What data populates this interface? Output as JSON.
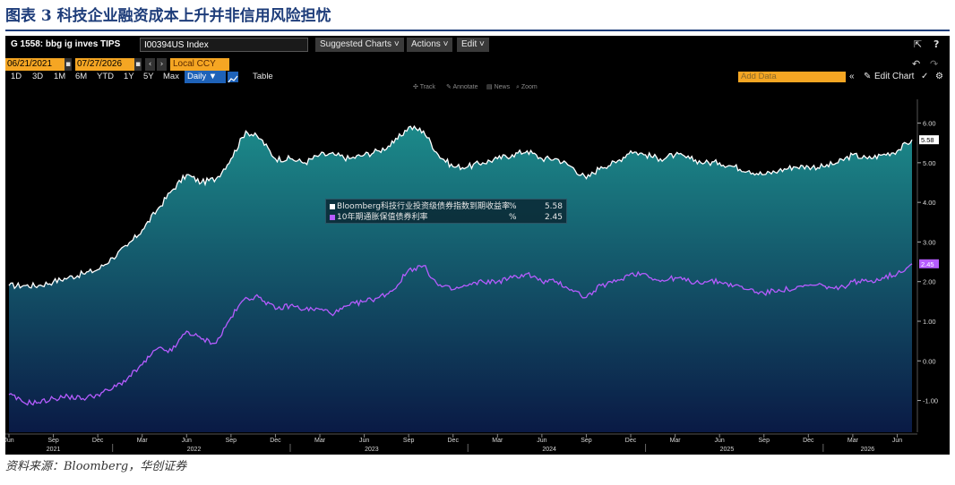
{
  "caption": {
    "title": "图表 3 科技企业融资成本上升并非信用风险担忧",
    "source": "资料来源：Bloomberg，华创证券"
  },
  "terminal": {
    "chart_id": "G 1558: bbg ig inves TIPS",
    "ticker": "I00394US Index",
    "menus": [
      "Suggested Charts ˅",
      "Actions ˅",
      "Edit ˅"
    ],
    "start_date": "06/21/2021",
    "end_date": "07/27/2026",
    "currency": "Local CCY",
    "periods": [
      "1D",
      "3D",
      "1M",
      "6M",
      "YTD",
      "1Y",
      "5Y",
      "Max"
    ],
    "frequency": "Daily ▼",
    "table_label": "Table",
    "add_data_placeholder": "Add Data",
    "edit_chart_label": "Edit Chart",
    "tool_hints": [
      "Track",
      "Annotate",
      "News",
      "Zoom"
    ]
  },
  "chart_data": {
    "type": "area",
    "title": "",
    "xlabel": "",
    "ylabel": "",
    "ylim": [
      -1.8,
      6.6
    ],
    "y_ticks": [
      "6.00",
      "5.00",
      "4.00",
      "3.00",
      "2.00",
      "1.00",
      "0.00",
      "-1.00"
    ],
    "x_month_ticks": [
      "Jun",
      "Sep",
      "Dec",
      "Mar",
      "Jun",
      "Sep",
      "Dec",
      "Mar",
      "Jun",
      "Sep",
      "Dec",
      "Mar",
      "Jun",
      "Sep",
      "Dec",
      "Mar",
      "Jun",
      "Sep",
      "Dec",
      "Mar",
      "Jun"
    ],
    "x_year_labels": [
      "2021",
      "2022",
      "2023",
      "2024",
      "2025",
      "2026"
    ],
    "legend_position": "center",
    "series": [
      {
        "name": "Bloomberg科技行业投资级债券指数到期收益率",
        "unit": "%",
        "last_value": "5.58",
        "color": "#ffffff",
        "fill_top": "#1c8a8a",
        "fill_bottom": "#0a1a45",
        "x": [
          "2021-06",
          "2021-07",
          "2021-08",
          "2021-09",
          "2021-10",
          "2021-11",
          "2021-12",
          "2022-01",
          "2022-02",
          "2022-03",
          "2022-04",
          "2022-05",
          "2022-06",
          "2022-07",
          "2022-08",
          "2022-09",
          "2022-10",
          "2022-11",
          "2022-12",
          "2023-01",
          "2023-02",
          "2023-03",
          "2023-04",
          "2023-05",
          "2023-06",
          "2023-07",
          "2023-08",
          "2023-09",
          "2023-10",
          "2023-11",
          "2023-12",
          "2024-01",
          "2024-02",
          "2024-03",
          "2024-04",
          "2024-05",
          "2024-06",
          "2024-07",
          "2024-08",
          "2024-09",
          "2024-10",
          "2024-11",
          "2024-12",
          "2025-01",
          "2025-02",
          "2025-03",
          "2025-04",
          "2025-05",
          "2025-06",
          "2025-07",
          "2025-08",
          "2025-09",
          "2025-10",
          "2025-11",
          "2025-12",
          "2026-01",
          "2026-02",
          "2026-03",
          "2026-04",
          "2026-05",
          "2026-06",
          "2026-07"
        ],
        "values": [
          1.9,
          1.9,
          1.9,
          2.0,
          2.1,
          2.2,
          2.3,
          2.6,
          2.9,
          3.3,
          3.8,
          4.3,
          4.7,
          4.5,
          4.6,
          5.1,
          5.8,
          5.6,
          5.1,
          5.1,
          5.0,
          5.2,
          5.2,
          5.1,
          5.2,
          5.3,
          5.5,
          5.9,
          5.8,
          5.2,
          4.9,
          4.9,
          5.0,
          5.1,
          5.2,
          5.3,
          5.1,
          5.1,
          4.9,
          4.6,
          4.9,
          5.0,
          5.3,
          5.2,
          5.1,
          5.2,
          5.1,
          5.0,
          5.0,
          4.9,
          4.8,
          4.7,
          4.8,
          4.9,
          4.9,
          4.9,
          5.0,
          5.2,
          5.1,
          5.2,
          5.3,
          5.58
        ]
      },
      {
        "name": "10年期通胀保值债券利率",
        "unit": "%",
        "last_value": "2.45",
        "color": "#b65cff",
        "x": [
          "2021-06",
          "2021-07",
          "2021-08",
          "2021-09",
          "2021-10",
          "2021-11",
          "2021-12",
          "2022-01",
          "2022-02",
          "2022-03",
          "2022-04",
          "2022-05",
          "2022-06",
          "2022-07",
          "2022-08",
          "2022-09",
          "2022-10",
          "2022-11",
          "2022-12",
          "2023-01",
          "2023-02",
          "2023-03",
          "2023-04",
          "2023-05",
          "2023-06",
          "2023-07",
          "2023-08",
          "2023-09",
          "2023-10",
          "2023-11",
          "2023-12",
          "2024-01",
          "2024-02",
          "2024-03",
          "2024-04",
          "2024-05",
          "2024-06",
          "2024-07",
          "2024-08",
          "2024-09",
          "2024-10",
          "2024-11",
          "2024-12",
          "2025-01",
          "2025-02",
          "2025-03",
          "2025-04",
          "2025-05",
          "2025-06",
          "2025-07",
          "2025-08",
          "2025-09",
          "2025-10",
          "2025-11",
          "2025-12",
          "2026-01",
          "2026-02",
          "2026-03",
          "2026-04",
          "2026-05",
          "2026-06",
          "2026-07"
        ],
        "values": [
          -0.85,
          -1.05,
          -1.05,
          -0.95,
          -0.9,
          -0.95,
          -0.85,
          -0.7,
          -0.45,
          -0.1,
          0.3,
          0.25,
          0.75,
          0.55,
          0.45,
          1.1,
          1.6,
          1.6,
          1.3,
          1.4,
          1.3,
          1.3,
          1.2,
          1.4,
          1.5,
          1.6,
          1.8,
          2.3,
          2.4,
          1.9,
          1.8,
          1.9,
          2.0,
          2.0,
          2.1,
          2.2,
          2.0,
          2.0,
          1.8,
          1.6,
          1.9,
          2.0,
          2.2,
          2.2,
          2.0,
          2.1,
          2.0,
          2.0,
          2.0,
          1.9,
          1.8,
          1.7,
          1.8,
          1.8,
          1.9,
          1.9,
          1.8,
          2.0,
          2.0,
          2.1,
          2.2,
          2.45
        ]
      }
    ]
  }
}
